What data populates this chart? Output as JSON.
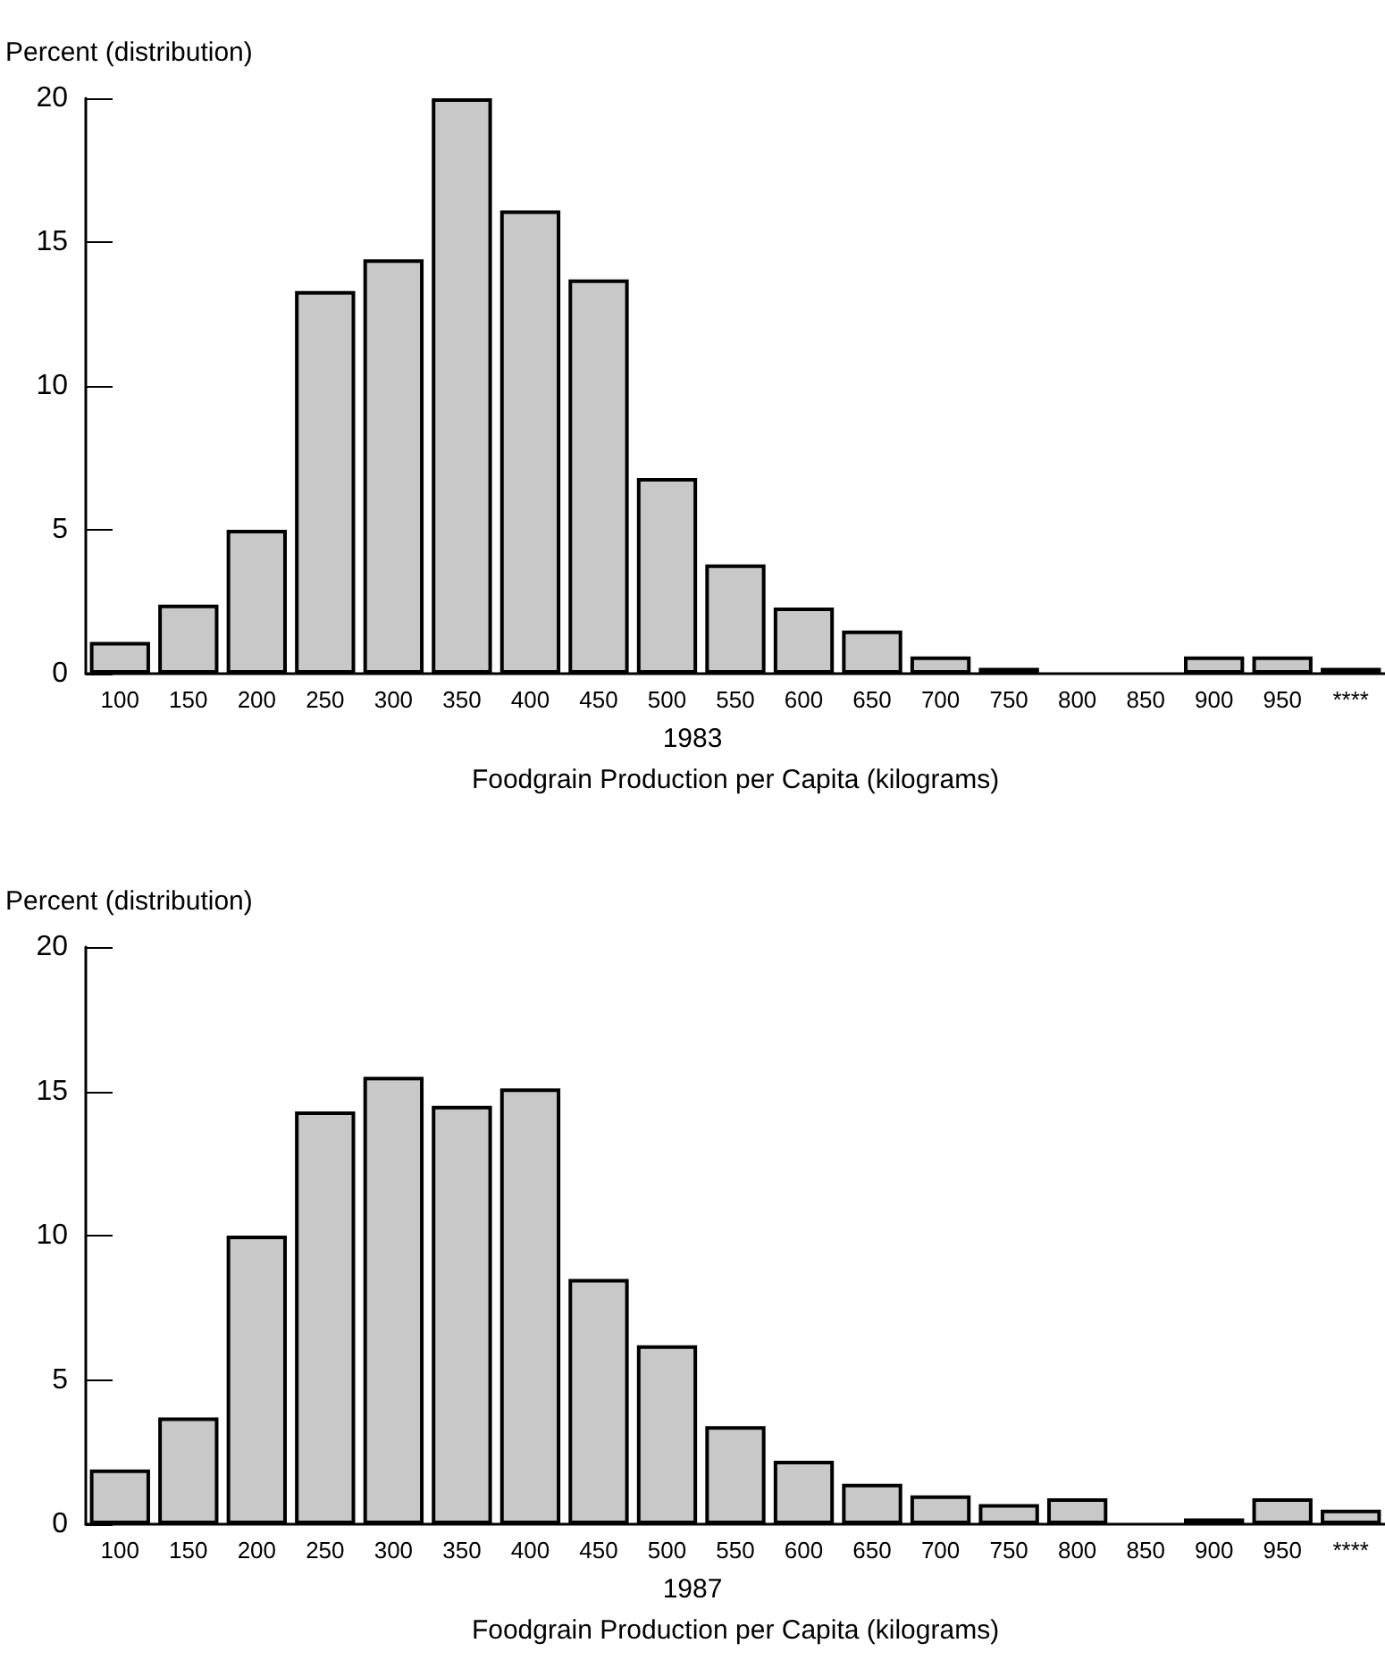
{
  "chart_data": [
    {
      "type": "bar",
      "title": "1983",
      "xlabel": "Foodgrain Production per Capita (kilograms)",
      "ylabel": "Percent (distribution)",
      "categories": [
        "100",
        "150",
        "200",
        "250",
        "300",
        "350",
        "400",
        "450",
        "500",
        "550",
        "600",
        "650",
        "700",
        "750",
        "800",
        "850",
        "900",
        "950",
        "****"
      ],
      "values": [
        1.1,
        2.4,
        5.0,
        13.3,
        14.4,
        20.0,
        16.1,
        13.7,
        6.8,
        3.8,
        2.3,
        1.5,
        0.6,
        0.2,
        0,
        0,
        0.6,
        0.6,
        0.2
      ],
      "color": "#c8c8c8",
      "ylim": [
        0,
        20
      ],
      "yticks": [
        0,
        5,
        10,
        15,
        20
      ],
      "grid": false
    },
    {
      "type": "bar",
      "title": "1987",
      "xlabel": "Foodgrain Production per Capita (kilograms)",
      "ylabel": "Percent (distribution)",
      "categories": [
        "100",
        "150",
        "200",
        "250",
        "300",
        "350",
        "400",
        "450",
        "500",
        "550",
        "600",
        "650",
        "700",
        "750",
        "800",
        "850",
        "900",
        "950",
        "****"
      ],
      "values": [
        1.9,
        3.7,
        10.0,
        14.3,
        15.5,
        14.5,
        15.1,
        8.5,
        6.2,
        3.4,
        2.2,
        1.4,
        1.0,
        0.7,
        0.9,
        0,
        0.2,
        0.9,
        0.5
      ],
      "color": "#c8c8c8",
      "ylim": [
        0,
        20
      ],
      "yticks": [
        0,
        5,
        10,
        15,
        20
      ],
      "grid": false
    }
  ]
}
